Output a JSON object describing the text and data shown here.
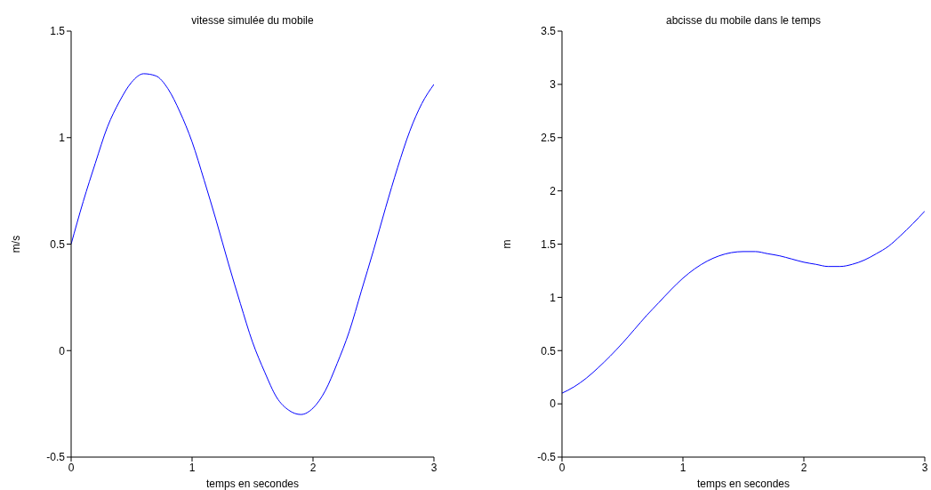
{
  "chart_data": [
    {
      "type": "line",
      "title": "vitesse simulée du mobile",
      "xlabel": "temps en secondes",
      "ylabel": "m/s",
      "xlim": [
        0,
        3
      ],
      "xticks": [
        0,
        1,
        2,
        3
      ],
      "ylim": [
        -0.5,
        1.5
      ],
      "yticks": [
        -0.5,
        0,
        0.5,
        1,
        1.5
      ],
      "marker": "none",
      "x": [
        0,
        0.1,
        0.2,
        0.3,
        0.4,
        0.5,
        0.6,
        0.7,
        0.8,
        0.9,
        1,
        1.1,
        1.2,
        1.3,
        1.4,
        1.5,
        1.6,
        1.7,
        1.8,
        1.9,
        2,
        2.1,
        2.2,
        2.3,
        2.4,
        2.5,
        2.6,
        2.7,
        2.8,
        2.9,
        3
      ],
      "series": [
        {
          "color": "#0000ff",
          "values": [
            0.5,
            0.7,
            0.88,
            1.05,
            1.17,
            1.26,
            1.3,
            1.29,
            1.23,
            1.12,
            0.98,
            0.8,
            0.61,
            0.41,
            0.22,
            0.04,
            -0.1,
            -0.22,
            -0.28,
            -0.3,
            -0.27,
            -0.19,
            -0.06,
            0.09,
            0.28,
            0.47,
            0.67,
            0.86,
            1.03,
            1.16,
            1.25
          ]
        }
      ]
    },
    {
      "type": "line",
      "title": "abcisse du mobile dans le temps",
      "xlabel": "temps en secondes",
      "ylabel": "m",
      "xlim": [
        0,
        3
      ],
      "xticks": [
        0,
        1,
        2,
        3
      ],
      "ylim": [
        -0.5,
        3.5
      ],
      "yticks": [
        -0.5,
        0,
        0.5,
        1,
        1.5,
        2,
        2.5,
        3,
        3.5
      ],
      "marker": "none",
      "x": [
        0,
        0.1,
        0.2,
        0.3,
        0.4,
        0.5,
        0.6,
        0.7,
        0.8,
        0.9,
        1,
        1.1,
        1.2,
        1.3,
        1.4,
        1.5,
        1.6,
        1.7,
        1.8,
        1.9,
        2,
        2.1,
        2.2,
        2.3,
        2.4,
        2.5,
        2.6,
        2.7,
        2.8,
        2.9,
        3
      ],
      "series": [
        {
          "color": "#0000ff",
          "values": [
            0.1,
            0.16,
            0.24,
            0.34,
            0.45,
            0.57,
            0.7,
            0.83,
            0.95,
            1.07,
            1.18,
            1.27,
            1.34,
            1.39,
            1.42,
            1.43,
            1.43,
            1.41,
            1.39,
            1.36,
            1.33,
            1.31,
            1.29,
            1.29,
            1.31,
            1.35,
            1.41,
            1.48,
            1.58,
            1.69,
            1.81
          ]
        }
      ]
    }
  ]
}
